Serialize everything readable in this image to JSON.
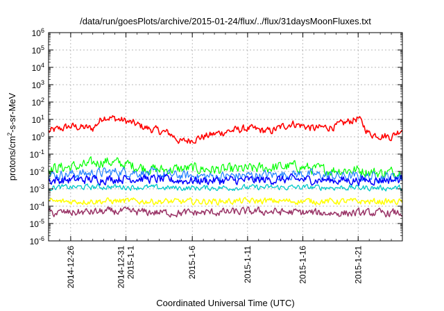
{
  "chart_data": {
    "type": "line",
    "title": "/data/run/goesPlots/archive/2015-01-24/flux/../flux/31daysMoonFluxes.txt",
    "xlabel": "Coordinated Universal Time (UTC)",
    "ylabel": "protons/cm2-s-sr-MeV",
    "ylabel_base": "protons/cm",
    "ylabel_sup": "2",
    "ylabel_rest": "-s-sr-MeV",
    "yscale": "log",
    "ylim": [
      1e-06,
      1000000.0
    ],
    "xlim": [
      "2014-12-24",
      "2015-01-25"
    ],
    "grid": true,
    "x_ticks": [
      "2014-12-26",
      "2014-12-31",
      "2015-1-1",
      "2015-1-6",
      "2015-1-11",
      "2015-1-16",
      "2015-1-21"
    ],
    "x_tick_labels": [
      {
        "date": "2014-12-26",
        "lines": [
          "2014-12-26"
        ]
      },
      {
        "date": "2014-12-31",
        "lines": [
          "2014-12-31",
          "2015-1-1"
        ]
      },
      {
        "date": "2015-01-06",
        "lines": [
          "2015-1-6"
        ]
      },
      {
        "date": "2015-01-11",
        "lines": [
          "2015-1-11"
        ]
      },
      {
        "date": "2015-01-16",
        "lines": [
          "2015-1-16"
        ]
      },
      {
        "date": "2015-01-21",
        "lines": [
          "2015-1-21"
        ]
      }
    ],
    "y_ticks": [
      {
        "base": "10",
        "exp": "-6",
        "value": 1e-06
      },
      {
        "base": "10",
        "exp": "-5",
        "value": 1e-05
      },
      {
        "base": "10",
        "exp": "-4",
        "value": 0.0001
      },
      {
        "base": "10",
        "exp": "-3",
        "value": 0.001
      },
      {
        "base": "10",
        "exp": "-2",
        "value": 0.01
      },
      {
        "base": "10",
        "exp": "-1",
        "value": 0.1
      },
      {
        "base": "10",
        "exp": "0",
        "value": 1
      },
      {
        "base": "10",
        "exp": "1",
        "value": 10
      },
      {
        "base": "10",
        "exp": "2",
        "value": 100
      },
      {
        "base": "10",
        "exp": "3",
        "value": 1000.0
      },
      {
        "base": "10",
        "exp": "4",
        "value": 10000.0
      },
      {
        "base": "10",
        "exp": "5",
        "value": 100000.0
      },
      {
        "base": "10",
        "exp": "6",
        "value": 1000000.0
      }
    ],
    "series": [
      {
        "color": "#ff0000",
        "width": 1.6,
        "noise_decades": 0.35,
        "x": [
          "2014-12-24",
          "2014-12-26",
          "2014-12-28",
          "2014-12-29",
          "2014-12-31",
          "2015-01-02",
          "2015-01-04",
          "2015-01-05",
          "2015-01-07",
          "2015-01-09",
          "2015-01-11",
          "2015-01-13",
          "2015-01-15",
          "2015-01-17",
          "2015-01-19",
          "2015-01-21",
          "2015-01-22",
          "2015-01-24",
          "2015-01-25"
        ],
        "y": [
          2,
          4,
          3,
          15,
          8,
          3,
          1.5,
          0.5,
          1,
          2,
          3,
          2,
          6,
          3,
          4,
          12,
          1.5,
          1,
          3
        ]
      },
      {
        "color": "#00ff00",
        "width": 1.2,
        "noise_decades": 0.5,
        "x": [
          "2014-12-24",
          "2014-12-27",
          "2014-12-29",
          "2015-01-01",
          "2015-01-03",
          "2015-01-06",
          "2015-01-09",
          "2015-01-12",
          "2015-01-15",
          "2015-01-18",
          "2015-01-21",
          "2015-01-23",
          "2015-01-25"
        ],
        "y": [
          0.015,
          0.02,
          0.04,
          0.02,
          0.012,
          0.015,
          0.012,
          0.015,
          0.02,
          0.012,
          0.012,
          0.008,
          0.01
        ]
      },
      {
        "color": "#1e7fff",
        "width": 1.2,
        "noise_decades": 0.45,
        "x": [
          "2014-12-24",
          "2014-12-28",
          "2014-12-31",
          "2015-01-04",
          "2015-01-08",
          "2015-01-12",
          "2015-01-16",
          "2015-01-20",
          "2015-01-25"
        ],
        "y": [
          0.006,
          0.008,
          0.01,
          0.006,
          0.005,
          0.006,
          0.007,
          0.005,
          0.005
        ]
      },
      {
        "color": "#0000ff",
        "width": 1.5,
        "noise_decades": 0.4,
        "x": [
          "2014-12-24",
          "2014-12-28",
          "2015-01-01",
          "2015-01-05",
          "2015-01-10",
          "2015-01-15",
          "2015-01-20",
          "2015-01-25"
        ],
        "y": [
          0.003,
          0.0035,
          0.004,
          0.003,
          0.003,
          0.0035,
          0.003,
          0.0035
        ]
      },
      {
        "color": "#00c8c8",
        "width": 1.3,
        "noise_decades": 0.25,
        "x": [
          "2014-12-24",
          "2014-12-30",
          "2015-01-05",
          "2015-01-12",
          "2015-01-18",
          "2015-01-25"
        ],
        "y": [
          0.0012,
          0.0013,
          0.0011,
          0.0012,
          0.0012,
          0.0011
        ]
      },
      {
        "color": "#ffff00",
        "width": 1.5,
        "noise_decades": 0.28,
        "x": [
          "2014-12-24",
          "2014-12-30",
          "2015-01-05",
          "2015-01-12",
          "2015-01-18",
          "2015-01-25"
        ],
        "y": [
          0.00018,
          0.0002,
          0.00018,
          0.0002,
          0.00019,
          0.00018
        ]
      },
      {
        "color": "#993366",
        "width": 1.5,
        "noise_decades": 0.35,
        "x": [
          "2014-12-24",
          "2014-12-30",
          "2015-01-05",
          "2015-01-12",
          "2015-01-18",
          "2015-01-25"
        ],
        "y": [
          4e-05,
          5e-05,
          4e-05,
          5e-05,
          4e-05,
          4e-05
        ]
      }
    ]
  }
}
